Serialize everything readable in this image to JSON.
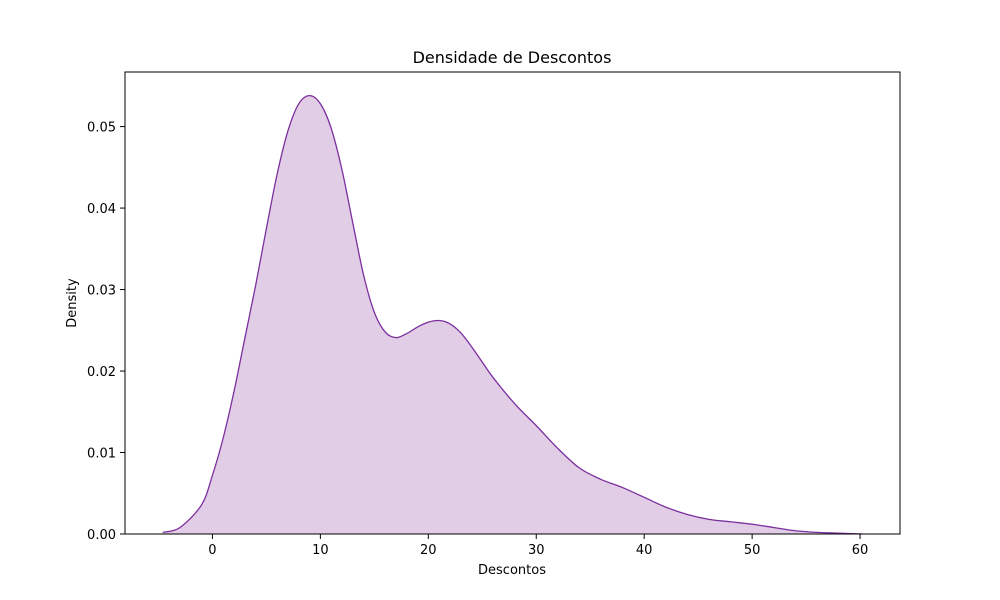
{
  "chart_data": {
    "type": "area",
    "title": "Densidade de Descontos",
    "xlabel": "Descontos",
    "ylabel": "Density",
    "xlim": [
      -8.1,
      63.7
    ],
    "ylim": [
      0,
      0.0567
    ],
    "xticks": [
      0,
      10,
      20,
      30,
      40,
      50,
      60
    ],
    "xtick_labels": [
      "0",
      "10",
      "20",
      "30",
      "40",
      "50",
      "60"
    ],
    "yticks": [
      0,
      0.01,
      0.02,
      0.03,
      0.04,
      0.05
    ],
    "ytick_labels": [
      "0.00",
      "0.01",
      "0.02",
      "0.03",
      "0.04",
      "0.05"
    ],
    "grid": false,
    "colors": {
      "line": "#7b2f9e",
      "fill": "#e1cde6"
    },
    "series": [
      {
        "x": [
          -4.6,
          -3,
          -1,
          0,
          1,
          2,
          3,
          4,
          5,
          6,
          7,
          8,
          9,
          10,
          11,
          12,
          13,
          14,
          15,
          16,
          17,
          18,
          19,
          20,
          21,
          22,
          23,
          24,
          25,
          26,
          28,
          30,
          32,
          34,
          36,
          38,
          40,
          42,
          44,
          46,
          48,
          50,
          52,
          54,
          56,
          58,
          60.2
        ],
        "y": [
          0.0002,
          0.0008,
          0.0036,
          0.0072,
          0.0118,
          0.0175,
          0.024,
          0.0305,
          0.0375,
          0.0442,
          0.0495,
          0.0528,
          0.0538,
          0.0528,
          0.0498,
          0.0447,
          0.0382,
          0.0318,
          0.0272,
          0.0248,
          0.0241,
          0.0246,
          0.0254,
          0.026,
          0.0262,
          0.0258,
          0.0247,
          0.023,
          0.0211,
          0.0192,
          0.016,
          0.0133,
          0.0105,
          0.0081,
          0.0067,
          0.0057,
          0.0045,
          0.0033,
          0.0024,
          0.0018,
          0.0015,
          0.0012,
          0.0008,
          0.0004,
          0.0002,
          0.0001,
          0.0
        ]
      }
    ]
  }
}
